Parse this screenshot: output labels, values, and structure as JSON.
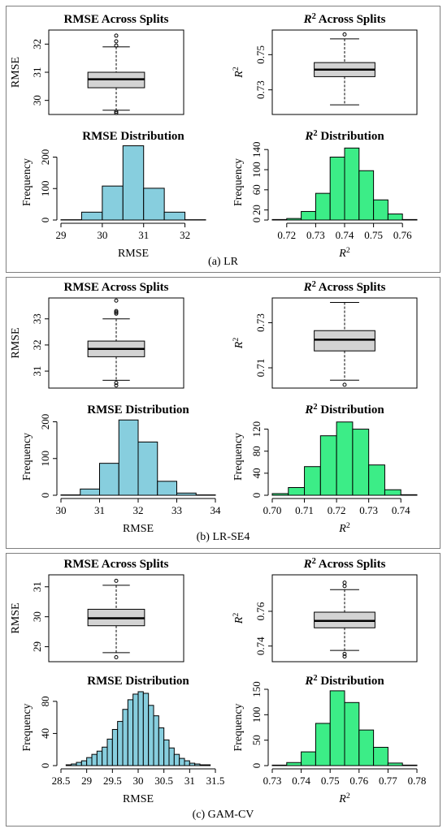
{
  "panels": [
    {
      "caption": "(a) LR",
      "charts": {
        "rmse_box": {
          "type": "box",
          "title": "RMSE Across Splits",
          "ylabel": "RMSE",
          "ylim": [
            29.5,
            32.5
          ],
          "yticks": [
            30,
            31,
            32
          ],
          "q1": 30.45,
          "median": 30.75,
          "q3": 31.0,
          "whisker_low": 29.65,
          "whisker_high": 31.9,
          "outliers_low": [
            29.6,
            29.55
          ],
          "outliers_high": [
            31.95,
            32.1,
            32.3
          ]
        },
        "r2_box": {
          "type": "box",
          "title_main": "R",
          "title_sup": "2",
          "title_rest": " Across Splits",
          "ylabel_main": "R",
          "ylabel_sup": "2",
          "ylim": [
            0.716,
            0.764
          ],
          "yticks": [
            0.73,
            0.75
          ],
          "tick_labels": [
            "0.73",
            "0.75"
          ],
          "q1": 0.7375,
          "median": 0.7415,
          "q3": 0.7455,
          "whisker_low": 0.7215,
          "whisker_high": 0.759,
          "outliers_low": [],
          "outliers_high": [
            0.7615
          ]
        },
        "rmse_hist": {
          "type": "histogram",
          "title": "RMSE Distribution",
          "xlabel": "RMSE",
          "ylabel": "Frequency",
          "bin_edges": [
            29.0,
            29.5,
            30.0,
            30.5,
            31.0,
            31.5,
            32.0,
            32.5
          ],
          "counts": [
            1,
            25,
            108,
            236,
            101,
            25,
            1
          ],
          "xlim": [
            29.0,
            32.5
          ],
          "xticks": [
            29,
            30,
            31,
            32
          ],
          "ylim": [
            0,
            240
          ],
          "yticks": [
            0,
            100,
            200
          ]
        },
        "r2_hist": {
          "type": "histogram",
          "title_main": "R",
          "title_sup": "2",
          "title_rest": " Distribution",
          "xlabel_main": "R",
          "xlabel_sup": "2",
          "ylabel": "Frequency",
          "bin_edges": [
            0.715,
            0.72,
            0.725,
            0.73,
            0.735,
            0.74,
            0.745,
            0.75,
            0.755,
            0.76,
            0.765
          ],
          "counts": [
            1,
            3,
            17,
            53,
            125,
            143,
            98,
            40,
            12,
            1
          ],
          "xlim": [
            0.715,
            0.765
          ],
          "xticks": [
            0.72,
            0.73,
            0.74,
            0.75,
            0.76
          ],
          "tick_labels": [
            "0.72",
            "0.73",
            "0.74",
            "0.75",
            "0.76"
          ],
          "ylim": [
            0,
            150
          ],
          "yticks": [
            0,
            20,
            60,
            100,
            140
          ]
        }
      }
    },
    {
      "caption": "(b) LR-SE4",
      "charts": {
        "rmse_box": {
          "type": "box",
          "title": "RMSE Across Splits",
          "ylabel": "RMSE",
          "ylim": [
            30.35,
            33.8
          ],
          "yticks": [
            31,
            32,
            33
          ],
          "q1": 31.55,
          "median": 31.85,
          "q3": 32.15,
          "whisker_low": 30.65,
          "whisker_high": 33.0,
          "outliers_low": [
            30.55,
            30.45
          ],
          "outliers_high": [
            33.2,
            33.25,
            33.3,
            33.7
          ]
        },
        "r2_box": {
          "type": "box",
          "title_main": "R",
          "title_sup": "2",
          "title_rest": " Across Splits",
          "ylabel_main": "R",
          "ylabel_sup": "2",
          "ylim": [
            0.701,
            0.741
          ],
          "yticks": [
            0.71,
            0.73
          ],
          "tick_labels": [
            "0.71",
            "0.73"
          ],
          "q1": 0.7175,
          "median": 0.7225,
          "q3": 0.7265,
          "whisker_low": 0.7045,
          "whisker_high": 0.739,
          "outliers_low": [
            0.7025
          ],
          "outliers_high": []
        },
        "rmse_hist": {
          "type": "histogram",
          "title": "RMSE Distribution",
          "xlabel": "RMSE",
          "ylabel": "Frequency",
          "bin_edges": [
            30.0,
            30.5,
            31.0,
            31.5,
            32.0,
            32.5,
            33.0,
            33.5,
            34.0
          ],
          "counts": [
            1,
            17,
            87,
            205,
            145,
            38,
            6,
            1
          ],
          "xlim": [
            30.0,
            34.0
          ],
          "xticks": [
            30,
            31,
            32,
            33,
            34
          ],
          "ylim": [
            0,
            210
          ],
          "yticks": [
            0,
            100,
            200
          ]
        },
        "r2_hist": {
          "type": "histogram",
          "title_main": "R",
          "title_sup": "2",
          "title_rest": " Distribution",
          "xlabel_main": "R",
          "xlabel_sup": "2",
          "ylabel": "Frequency",
          "bin_edges": [
            0.7,
            0.705,
            0.71,
            0.715,
            0.72,
            0.725,
            0.73,
            0.735,
            0.74,
            0.745
          ],
          "counts": [
            3,
            14,
            52,
            108,
            133,
            120,
            55,
            10,
            1
          ],
          "xlim": [
            0.7,
            0.745
          ],
          "xticks": [
            0.7,
            0.71,
            0.72,
            0.73,
            0.74
          ],
          "tick_labels": [
            "0.70",
            "0.71",
            "0.72",
            "0.73",
            "0.74"
          ],
          "ylim": [
            0,
            140
          ],
          "yticks": [
            0,
            40,
            80,
            120
          ]
        }
      }
    },
    {
      "caption": "(c) GAM-CV",
      "charts": {
        "rmse_box": {
          "type": "box",
          "title": "RMSE Across Splits",
          "ylabel": "RMSE",
          "ylim": [
            28.5,
            31.4
          ],
          "yticks": [
            29,
            30,
            31
          ],
          "q1": 29.7,
          "median": 29.95,
          "q3": 30.25,
          "whisker_low": 28.8,
          "whisker_high": 31.05,
          "outliers_low": [
            28.65
          ],
          "outliers_high": [
            31.2
          ]
        },
        "r2_box": {
          "type": "box",
          "title_main": "R",
          "title_sup": "2",
          "title_rest": " Across Splits",
          "ylabel_main": "R",
          "ylabel_sup": "2",
          "ylim": [
            0.731,
            0.781
          ],
          "yticks": [
            0.74,
            0.76
          ],
          "tick_labels": [
            "0.74",
            "0.76"
          ],
          "q1": 0.7505,
          "median": 0.7545,
          "q3": 0.7595,
          "whisker_low": 0.7375,
          "whisker_high": 0.7725,
          "outliers_low": [
            0.7355,
            0.734
          ],
          "outliers_high": [
            0.7745,
            0.7765
          ]
        },
        "rmse_hist": {
          "type": "histogram",
          "title": "RMSE Distribution",
          "xlabel": "RMSE",
          "ylabel": "Frequency",
          "bin_edges": [
            28.6,
            28.7,
            28.8,
            28.9,
            29.0,
            29.1,
            29.2,
            29.3,
            29.4,
            29.5,
            29.6,
            29.7,
            29.8,
            29.9,
            30.0,
            30.1,
            30.2,
            30.3,
            30.4,
            30.5,
            30.6,
            30.7,
            30.8,
            30.9,
            31.0,
            31.1,
            31.2,
            31.3,
            31.4
          ],
          "counts": [
            1,
            2,
            4,
            6,
            10,
            14,
            18,
            23,
            33,
            45,
            55,
            70,
            82,
            89,
            92,
            90,
            75,
            62,
            47,
            32,
            22,
            14,
            9,
            6,
            3,
            2,
            1,
            1
          ],
          "xlim": [
            28.5,
            31.5
          ],
          "xticks": [
            28.5,
            29,
            29.5,
            30,
            30.5,
            31,
            31.5
          ],
          "tick_labels": [
            "28.5",
            "29",
            "29.5",
            "30",
            "30.5",
            "31",
            "31.5"
          ],
          "ylim": [
            0,
            95
          ],
          "yticks": [
            0,
            40,
            80
          ]
        },
        "r2_hist": {
          "type": "histogram",
          "title_main": "R",
          "title_sup": "2",
          "title_rest": " Distribution",
          "xlabel_main": "R",
          "xlabel_sup": "2",
          "ylabel": "Frequency",
          "bin_edges": [
            0.73,
            0.735,
            0.74,
            0.745,
            0.75,
            0.755,
            0.76,
            0.765,
            0.77,
            0.775,
            0.78
          ],
          "counts": [
            1,
            6,
            27,
            83,
            147,
            124,
            70,
            36,
            5,
            1
          ],
          "xlim": [
            0.73,
            0.78
          ],
          "xticks": [
            0.73,
            0.74,
            0.75,
            0.76,
            0.77,
            0.78
          ],
          "tick_labels": [
            "0.73",
            "0.74",
            "0.75",
            "0.76",
            "0.77",
            "0.78"
          ],
          "ylim": [
            0,
            150
          ],
          "yticks": [
            0,
            50,
            100,
            150
          ]
        }
      }
    }
  ],
  "colors": {
    "box_fill": "#d3d3d3",
    "rmse_hist_fill": "#87cede",
    "r2_hist_fill": "#3ced87",
    "panel_border": "#7f7f7f"
  }
}
